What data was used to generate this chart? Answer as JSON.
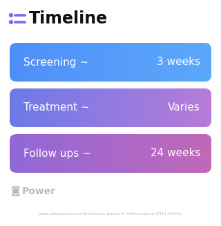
{
  "title": "Timeline",
  "title_icon_color": "#7c6ff7",
  "background_color": "#ffffff",
  "rows": [
    {
      "label": "Screening ~",
      "value": "3 weeks",
      "color_left": "#4f8ef8",
      "color_right": "#5ba8fa"
    },
    {
      "label": "Treatment ~",
      "value": "Varies",
      "color_left": "#6b7ae8",
      "color_right": "#b87ad8"
    },
    {
      "label": "Follow ups ~",
      "value": "24 weeks",
      "color_left": "#9068d8",
      "color_right": "#c068b8"
    }
  ],
  "footer_logo_text": "Power",
  "footer_url": "www.withpower.com/trial/early-phase-1-inflammation-2011-6613a",
  "footer_color": "#bbbbbb"
}
